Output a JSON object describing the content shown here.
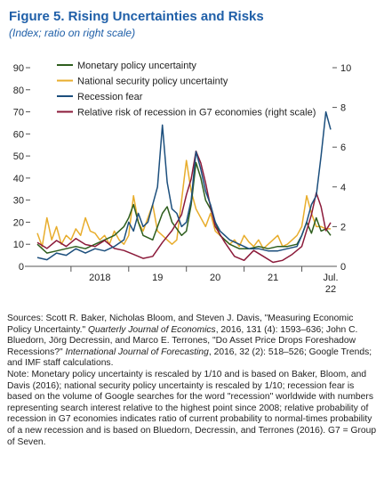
{
  "figure": {
    "title": "Figure 5. Rising Uncertainties and Risks",
    "subtitle": "(Index; ratio on right scale)"
  },
  "chart_data": {
    "type": "line",
    "title": "Figure 5. Rising Uncertainties and Risks",
    "subtitle": "(Index; ratio on right scale)",
    "x_axis": {
      "type": "date",
      "range": [
        "2017-06",
        "2022-07"
      ],
      "tick_labels": [
        "2018",
        "19",
        "20",
        "21",
        "Jul. 22"
      ]
    },
    "y_left": {
      "range": [
        0,
        90
      ],
      "ticks": [
        0,
        10,
        20,
        30,
        40,
        50,
        60,
        70,
        80,
        90
      ]
    },
    "y_right": {
      "range": [
        0,
        10
      ],
      "ticks": [
        0,
        2,
        4,
        6,
        8,
        10
      ]
    },
    "grid": false,
    "legend": {
      "position": "top-left",
      "entries": [
        "Monetary policy uncertainty",
        "National security policy uncertainty",
        "Recession fear",
        "Relative risk of recession in G7 economies (right scale)"
      ]
    },
    "series": [
      {
        "name": "Monetary policy uncertainty",
        "color": "#2e5e1e",
        "axis": "left",
        "points": [
          [
            "2017-06",
            10
          ],
          [
            "2017-08",
            6
          ],
          [
            "2017-10",
            7
          ],
          [
            "2017-12",
            8
          ],
          [
            "2018-02",
            9
          ],
          [
            "2018-04",
            8
          ],
          [
            "2018-06",
            10
          ],
          [
            "2018-08",
            12
          ],
          [
            "2018-10",
            14
          ],
          [
            "2018-12",
            18
          ],
          [
            "2019-01",
            22
          ],
          [
            "2019-02",
            28
          ],
          [
            "2019-03",
            20
          ],
          [
            "2019-04",
            14
          ],
          [
            "2019-06",
            12
          ],
          [
            "2019-08",
            24
          ],
          [
            "2019-09",
            27
          ],
          [
            "2019-10",
            20
          ],
          [
            "2019-12",
            14
          ],
          [
            "2020-01",
            16
          ],
          [
            "2020-02",
            28
          ],
          [
            "2020-03",
            47
          ],
          [
            "2020-04",
            40
          ],
          [
            "2020-05",
            30
          ],
          [
            "2020-06",
            26
          ],
          [
            "2020-08",
            14
          ],
          [
            "2020-10",
            10
          ],
          [
            "2020-12",
            8
          ],
          [
            "2021-02",
            8
          ],
          [
            "2021-04",
            9
          ],
          [
            "2021-06",
            8
          ],
          [
            "2021-08",
            9
          ],
          [
            "2021-10",
            9
          ],
          [
            "2021-12",
            10
          ],
          [
            "2022-01",
            14
          ],
          [
            "2022-02",
            20
          ],
          [
            "2022-03",
            15
          ],
          [
            "2022-04",
            22
          ],
          [
            "2022-05",
            16
          ],
          [
            "2022-06",
            17
          ],
          [
            "2022-07",
            14
          ]
        ]
      },
      {
        "name": "National security policy uncertainty",
        "color": "#e8ad2c",
        "axis": "left",
        "points": [
          [
            "2017-06",
            15
          ],
          [
            "2017-07",
            9
          ],
          [
            "2017-08",
            22
          ],
          [
            "2017-09",
            12
          ],
          [
            "2017-10",
            18
          ],
          [
            "2017-11",
            10
          ],
          [
            "2017-12",
            14
          ],
          [
            "2018-01",
            12
          ],
          [
            "2018-02",
            17
          ],
          [
            "2018-03",
            14
          ],
          [
            "2018-04",
            22
          ],
          [
            "2018-05",
            16
          ],
          [
            "2018-06",
            15
          ],
          [
            "2018-07",
            12
          ],
          [
            "2018-08",
            14
          ],
          [
            "2018-09",
            10
          ],
          [
            "2018-10",
            16
          ],
          [
            "2018-11",
            12
          ],
          [
            "2018-12",
            10
          ],
          [
            "2019-01",
            14
          ],
          [
            "2019-02",
            32
          ],
          [
            "2019-03",
            20
          ],
          [
            "2019-04",
            16
          ],
          [
            "2019-05",
            22
          ],
          [
            "2019-06",
            28
          ],
          [
            "2019-07",
            16
          ],
          [
            "2019-08",
            14
          ],
          [
            "2019-09",
            12
          ],
          [
            "2019-10",
            10
          ],
          [
            "2019-11",
            12
          ],
          [
            "2020-01",
            48
          ],
          [
            "2020-02",
            34
          ],
          [
            "2020-03",
            26
          ],
          [
            "2020-04",
            22
          ],
          [
            "2020-05",
            18
          ],
          [
            "2020-06",
            24
          ],
          [
            "2020-07",
            16
          ],
          [
            "2020-08",
            14
          ],
          [
            "2020-09",
            12
          ],
          [
            "2020-10",
            10
          ],
          [
            "2020-11",
            12
          ],
          [
            "2020-12",
            9
          ],
          [
            "2021-01",
            14
          ],
          [
            "2021-02",
            11
          ],
          [
            "2021-03",
            9
          ],
          [
            "2021-04",
            12
          ],
          [
            "2021-05",
            8
          ],
          [
            "2021-06",
            10
          ],
          [
            "2021-07",
            12
          ],
          [
            "2021-08",
            14
          ],
          [
            "2021-09",
            9
          ],
          [
            "2021-10",
            10
          ],
          [
            "2021-11",
            12
          ],
          [
            "2021-12",
            14
          ],
          [
            "2022-01",
            18
          ],
          [
            "2022-02",
            32
          ],
          [
            "2022-03",
            24
          ],
          [
            "2022-04",
            18
          ],
          [
            "2022-05",
            18
          ],
          [
            "2022-06",
            17
          ],
          [
            "2022-07",
            17
          ]
        ]
      },
      {
        "name": "Recession fear",
        "color": "#1c4f7d",
        "axis": "left",
        "points": [
          [
            "2017-06",
            4
          ],
          [
            "2017-08",
            3
          ],
          [
            "2017-10",
            6
          ],
          [
            "2017-12",
            5
          ],
          [
            "2018-02",
            8
          ],
          [
            "2018-04",
            6
          ],
          [
            "2018-06",
            8
          ],
          [
            "2018-08",
            7
          ],
          [
            "2018-10",
            9
          ],
          [
            "2018-12",
            12
          ],
          [
            "2019-01",
            20
          ],
          [
            "2019-02",
            16
          ],
          [
            "2019-03",
            24
          ],
          [
            "2019-04",
            18
          ],
          [
            "2019-05",
            20
          ],
          [
            "2019-06",
            28
          ],
          [
            "2019-07",
            36
          ],
          [
            "2019-08",
            64
          ],
          [
            "2019-09",
            38
          ],
          [
            "2019-10",
            26
          ],
          [
            "2019-11",
            24
          ],
          [
            "2019-12",
            18
          ],
          [
            "2020-01",
            20
          ],
          [
            "2020-02",
            30
          ],
          [
            "2020-03",
            52
          ],
          [
            "2020-04",
            44
          ],
          [
            "2020-05",
            34
          ],
          [
            "2020-06",
            28
          ],
          [
            "2020-07",
            20
          ],
          [
            "2020-08",
            16
          ],
          [
            "2020-10",
            12
          ],
          [
            "2020-12",
            10
          ],
          [
            "2021-02",
            8
          ],
          [
            "2021-04",
            8
          ],
          [
            "2021-06",
            7
          ],
          [
            "2021-08",
            7
          ],
          [
            "2021-10",
            8
          ],
          [
            "2021-12",
            9
          ],
          [
            "2022-01",
            14
          ],
          [
            "2022-02",
            20
          ],
          [
            "2022-03",
            28
          ],
          [
            "2022-04",
            32
          ],
          [
            "2022-05",
            50
          ],
          [
            "2022-06",
            70
          ],
          [
            "2022-07",
            62
          ]
        ]
      },
      {
        "name": "Relative risk of recession in G7 economies (right scale)",
        "color": "#8b1a3a",
        "axis": "right",
        "points": [
          [
            "2017-06",
            1.2
          ],
          [
            "2017-08",
            0.9
          ],
          [
            "2017-10",
            1.3
          ],
          [
            "2017-12",
            1.0
          ],
          [
            "2018-02",
            1.4
          ],
          [
            "2018-04",
            1.1
          ],
          [
            "2018-06",
            1.0
          ],
          [
            "2018-08",
            1.3
          ],
          [
            "2018-10",
            0.9
          ],
          [
            "2018-12",
            0.8
          ],
          [
            "2019-02",
            0.6
          ],
          [
            "2019-04",
            0.4
          ],
          [
            "2019-06",
            0.5
          ],
          [
            "2019-08",
            1.2
          ],
          [
            "2019-10",
            1.8
          ],
          [
            "2019-12",
            2.6
          ],
          [
            "2020-01",
            3.6
          ],
          [
            "2020-02",
            4.4
          ],
          [
            "2020-03",
            5.8
          ],
          [
            "2020-04",
            5.2
          ],
          [
            "2020-05",
            4.2
          ],
          [
            "2020-06",
            3.0
          ],
          [
            "2020-07",
            2.0
          ],
          [
            "2020-09",
            1.2
          ],
          [
            "2020-11",
            0.5
          ],
          [
            "2021-01",
            0.3
          ],
          [
            "2021-03",
            0.8
          ],
          [
            "2021-05",
            0.5
          ],
          [
            "2021-07",
            0.2
          ],
          [
            "2021-09",
            0.3
          ],
          [
            "2021-11",
            0.6
          ],
          [
            "2022-01",
            1.0
          ],
          [
            "2022-03",
            2.6
          ],
          [
            "2022-04",
            3.7
          ],
          [
            "2022-05",
            3.0
          ],
          [
            "2022-06",
            1.8
          ],
          [
            "2022-07",
            2.2
          ]
        ]
      }
    ]
  },
  "notes": {
    "sources": [
      {
        "t": "Sources: Scott R. Baker, Nicholas Bloom, and Steven J. Davis, \"Measuring Economic Policy Uncertainty.\" "
      },
      {
        "t": "Quarterly Journal of Economics",
        "i": true
      },
      {
        "t": ", 2016, 131 (4): 1593–636; John C. Bluedorn, Jörg Decressin, and Marco E. Terrones, \"Do Asset Price Drops Foreshadow Recessions?\" "
      },
      {
        "t": "International Journal of Forecasting",
        "i": true
      },
      {
        "t": ", 2016, 32 (2): 518–526; Google Trends; and IMF staff calculations."
      }
    ],
    "note": "Note: Monetary policy uncertainty is rescaled by 1/10 and is based on Baker, Bloom, and Davis (2016); national security policy uncertainty is rescaled by 1/10; recession fear is based on the volume of Google searches for the word \"recession\" worldwide with numbers representing search interest relative to the highest point since 2008; relative probability of recession in G7 economies indicates ratio of current probability to normal-times probability of a new recession and is based on Bluedorn, Decressin, and Terrones (2016). G7 = Group of Seven."
  }
}
